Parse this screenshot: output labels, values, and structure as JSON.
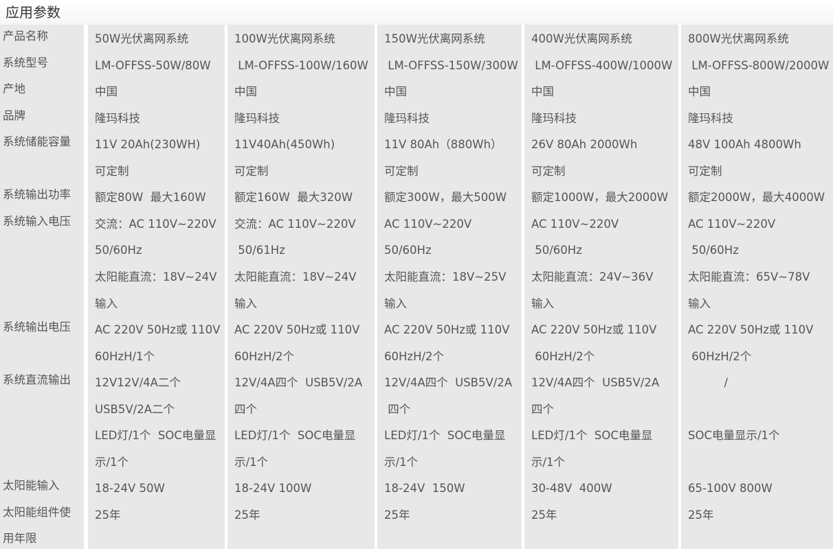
{
  "title": "应用参数",
  "labels": [
    "产品名称",
    "系统型号",
    "产地",
    "品牌",
    "系统储能容量",
    "",
    "系统输出功率",
    "系统输入电压",
    "",
    "",
    "",
    "系统输出电压",
    "",
    "系统直流输出",
    "",
    "",
    "",
    "太阳能输入",
    "太阳能组件使",
    "用年限"
  ],
  "columns": [
    [
      "50W光伏离网系统",
      "LM-OFFSS-50W/80W",
      "中国",
      "隆玛科技",
      "11V 20Ah(230WH)",
      "可定制",
      "额定80W  最大160W",
      "交流：AC 110V~220V",
      "50/60Hz",
      "太阳能直流：18V~24V",
      "输入",
      "AC 220V 50Hz或 110V",
      "60HzH/1个",
      "12V12V/4A二个",
      "USB5V/2A二个",
      "LED灯/1个  SOC电量显",
      "示/1个",
      "18-24V 50W",
      "25年"
    ],
    [
      "100W光伏离网系统",
      " LM-OFFSS-100W/160W",
      "中国",
      "隆玛科技",
      "11V40Ah(450Wh)",
      "可定制",
      "额定160W  最大320W",
      "交流：AC 110V~220V",
      " 50/61Hz",
      "太阳能直流：18V~24V",
      "输入",
      "AC 220V 50Hz或 110V",
      "60HzH/2个",
      "12V/4A四个  USB5V/2A",
      "四个",
      "LED灯/1个  SOC电量显",
      "示/1个",
      "18-24V 100W",
      "25年"
    ],
    [
      "150W光伏离网系统",
      " LM-OFFSS-150W/300W",
      "中国",
      "隆玛科技",
      "11V 80Ah（880Wh）",
      "可定制",
      "额定300W，最大500W",
      "AC 110V~220V",
      "50/60Hz",
      "太阳能直流：18V~25V",
      "输入",
      "AC 220V 50Hz或 110V",
      "60HzH/2个",
      "12V/4A四个  USB5V/2A",
      " 四个",
      "LED灯/1个  SOC电量显",
      "示/1个",
      "18-24V  150W",
      "25年"
    ],
    [
      "400W光伏离网系统",
      " LM-OFFSS-400W/1000W",
      "中国",
      "隆玛科技",
      "26V 80Ah 2000Wh",
      "可定制",
      "额定1000W，最大2000W",
      "AC 110V~220V",
      " 50/60Hz",
      "太阳能直流：24V~36V",
      "输入",
      "AC 220V 50Hz或 110V",
      " 60HzH/2个",
      "12V/4A四个  USB5V/2A",
      "四个",
      "LED灯/1个  SOC电量显",
      "示/1个",
      "30-48V  400W",
      "25年"
    ],
    [
      "800W光伏离网系统",
      " LM-OFFSS-800W/2000W",
      "中国",
      "隆玛科技",
      "48V 100Ah 4800Wh",
      "可定制",
      "额定2000W，最大4000W",
      "AC 110V~220V",
      " 50/60Hz",
      "太阳能直流：65V~78V",
      "输入",
      "AC 220V 50Hz或 110V",
      " 60HzH/2个",
      "          /",
      "",
      "SOC电量显示/1个",
      "",
      "65-100V 800W",
      "25年"
    ]
  ]
}
